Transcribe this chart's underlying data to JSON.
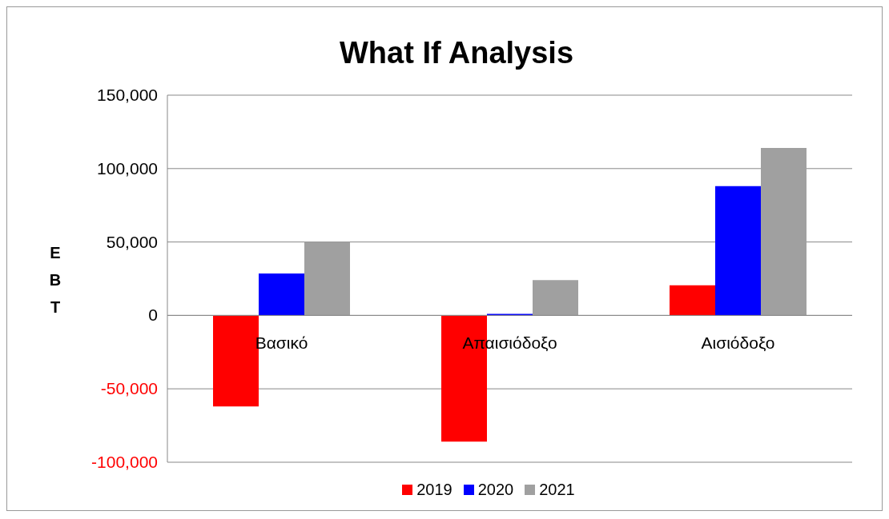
{
  "chart_data": {
    "type": "bar",
    "title": "What If Analysis",
    "ylabel": "EBT",
    "categories": [
      "Βασικό",
      "Απαισιόδοξο",
      "Αισιόδοξο"
    ],
    "series": [
      {
        "name": "2019",
        "color": "#ff0000",
        "values": [
          -62000,
          -86000,
          20500
        ]
      },
      {
        "name": "2020",
        "color": "#0000ff",
        "values": [
          28500,
          1000,
          88000
        ]
      },
      {
        "name": "2021",
        "color": "#a0a0a0",
        "values": [
          50000,
          24000,
          114000
        ]
      }
    ],
    "ylim": [
      -100000,
      150000
    ],
    "yticks": [
      {
        "value": -100000,
        "label": "-100,000"
      },
      {
        "value": -50000,
        "label": "-50,000"
      },
      0,
      {
        "value": 50000,
        "label": "50,000"
      },
      {
        "value": 100000,
        "label": "100,000"
      },
      {
        "value": 150000,
        "label": "150,000"
      }
    ],
    "grid": "y",
    "legend": "bottom"
  }
}
